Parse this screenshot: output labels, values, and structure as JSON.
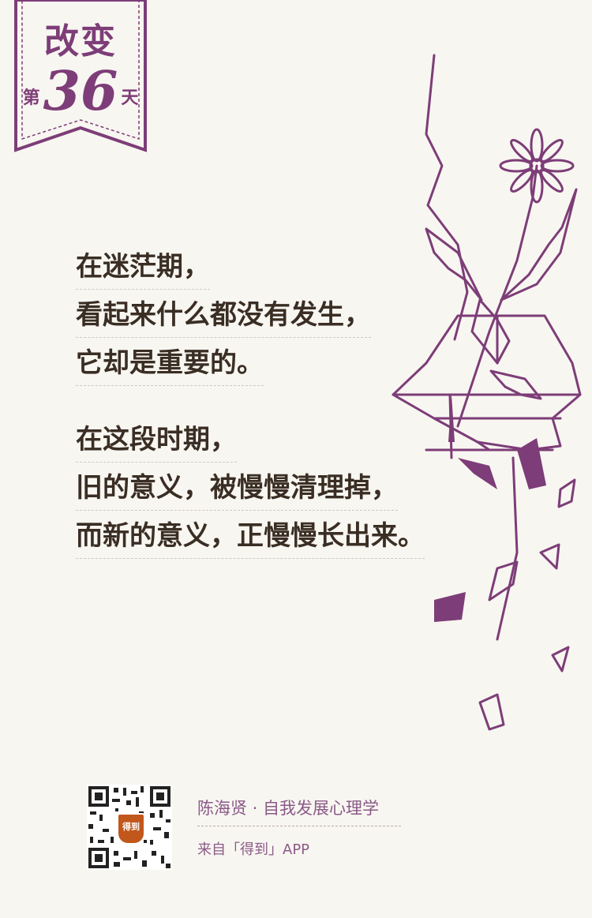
{
  "badge": {
    "title": "改变",
    "day_prefix": "第",
    "day_number": "36",
    "day_suffix": "天"
  },
  "poem": {
    "stanza1": [
      "在迷茫期，",
      "看起来什么都没有发生，",
      "它却是重要的。"
    ],
    "stanza2": [
      "在这段时期，",
      "旧的意义，被慢慢清理掉，",
      "而新的意义，正慢慢长出来。"
    ]
  },
  "footer": {
    "author": "陈海贤 · 自我发展心理学",
    "source": "来自「得到」APP",
    "qr_logo_text": "得到"
  },
  "colors": {
    "accent": "#7d3d78",
    "text": "#3a2e24",
    "background": "#f8f6f1",
    "footer_text": "#8a5a87"
  }
}
